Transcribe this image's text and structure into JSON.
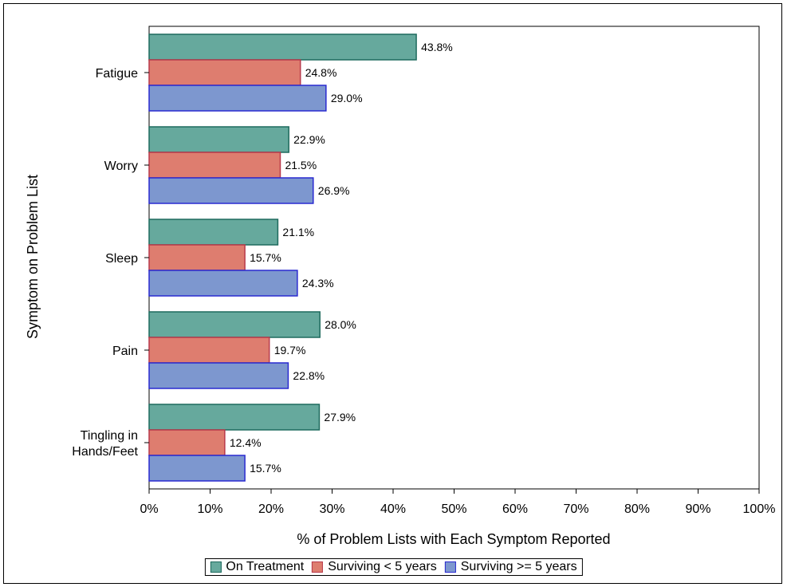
{
  "chart_data": {
    "type": "bar",
    "orientation": "horizontal",
    "categories": [
      "Fatigue",
      "Worry",
      "Sleep",
      "Pain",
      "Tingling in Hands/Feet"
    ],
    "category_lines": [
      [
        "Fatigue"
      ],
      [
        "Worry"
      ],
      [
        "Sleep"
      ],
      [
        "Pain"
      ],
      [
        "Tingling in",
        "Hands/Feet"
      ]
    ],
    "series": [
      {
        "name": "On Treatment",
        "values": [
          43.8,
          22.9,
          21.1,
          28.0,
          27.9
        ],
        "labels": [
          "43.8%",
          "22.9%",
          "21.1%",
          "28.0%",
          "27.9%"
        ],
        "fill": "#66a99d",
        "stroke": "#1f6b5e"
      },
      {
        "name": "Surviving < 5 years",
        "values": [
          24.8,
          21.5,
          15.7,
          19.7,
          12.4
        ],
        "labels": [
          "24.8%",
          "21.5%",
          "15.7%",
          "19.7%",
          "12.4%"
        ],
        "fill": "#de7d6f",
        "stroke": "#b83a4b"
      },
      {
        "name": "Surviving >= 5 years",
        "values": [
          29.0,
          26.9,
          24.3,
          22.8,
          15.7
        ],
        "labels": [
          "29.0%",
          "26.9%",
          "24.3%",
          "22.8%",
          "15.7%"
        ],
        "fill": "#7d97cf",
        "stroke": "#2a2ad0"
      }
    ],
    "xlabel": "% of Problem Lists with Each Symptom Reported",
    "ylabel": "Symptom on Problem List",
    "xlim": [
      0,
      100
    ],
    "xticks": [
      "0%",
      "10%",
      "20%",
      "30%",
      "40%",
      "50%",
      "60%",
      "70%",
      "80%",
      "90%",
      "100%"
    ],
    "grid": false,
    "legend_position": "bottom"
  }
}
